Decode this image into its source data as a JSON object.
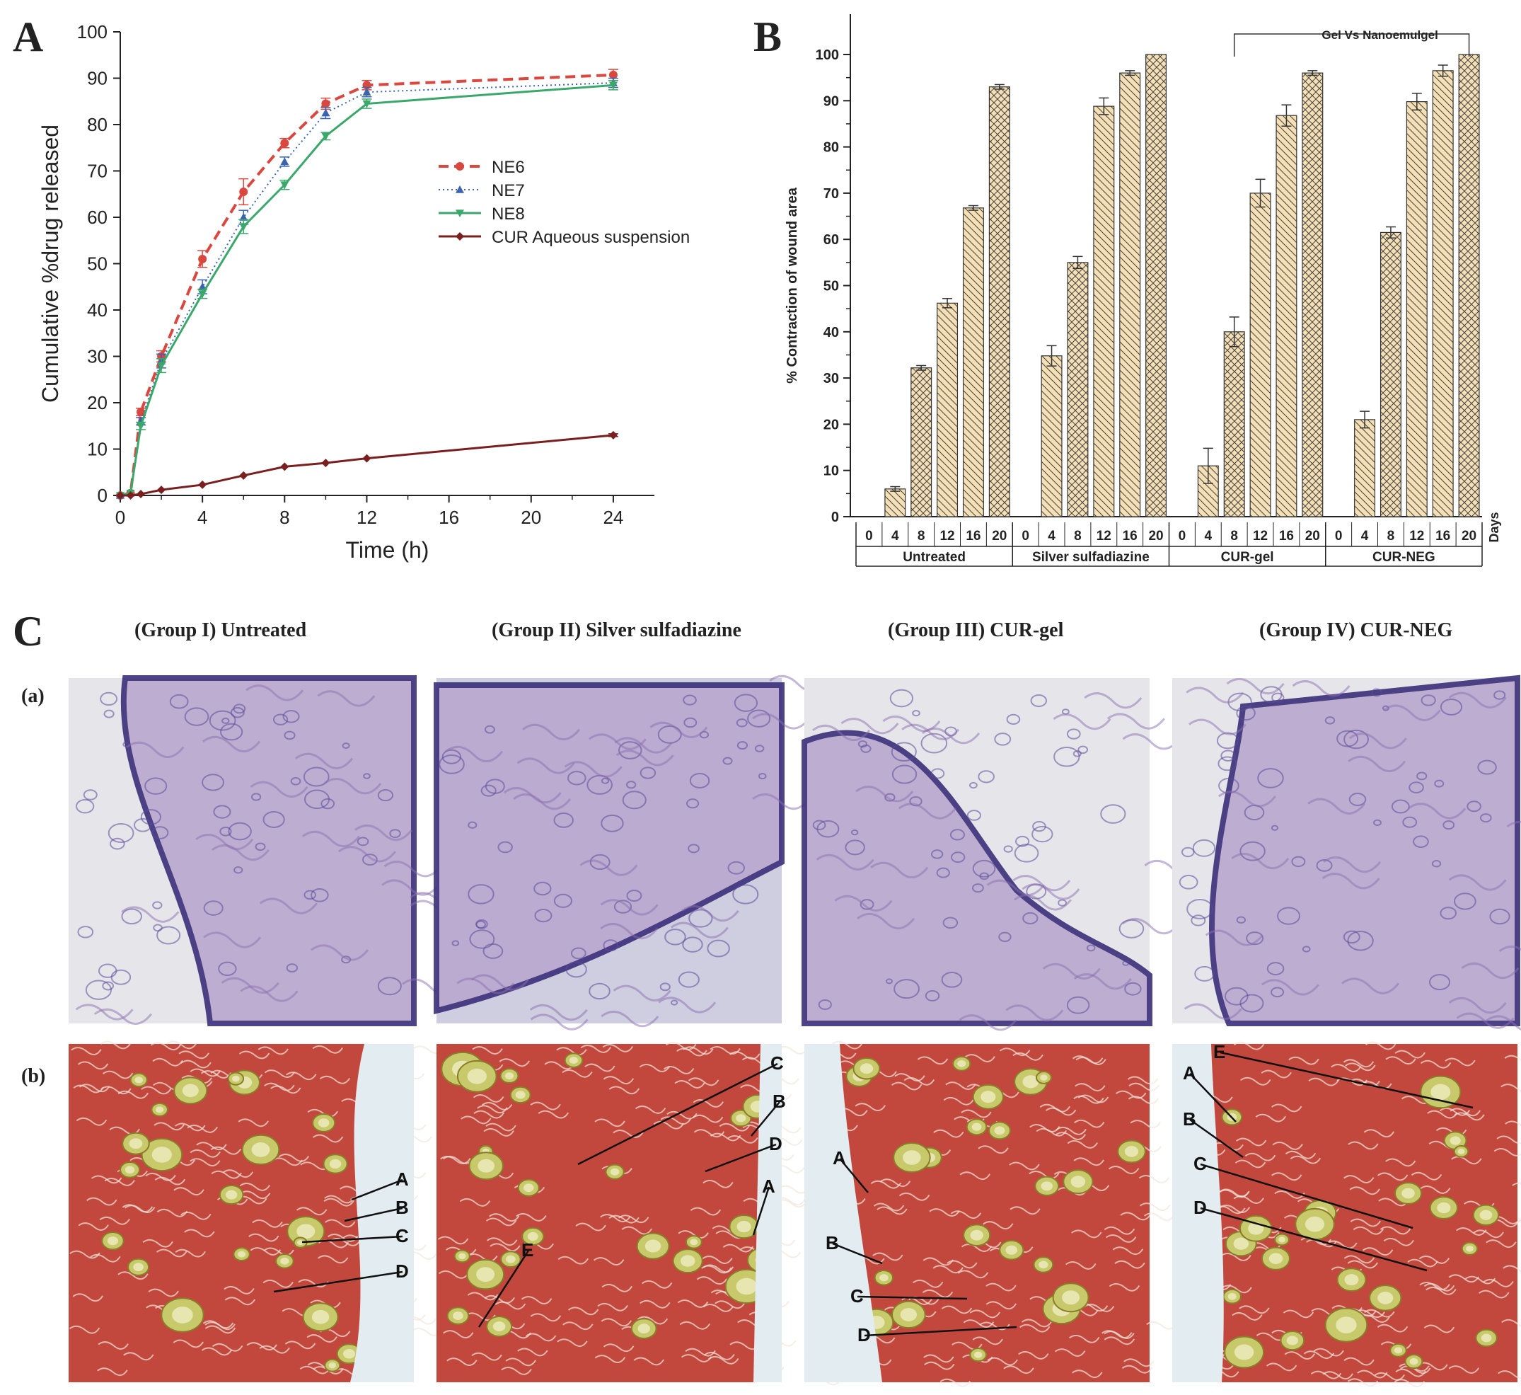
{
  "panels": {
    "a": "A",
    "b": "B",
    "c": "C"
  },
  "chart_data": [
    {
      "type": "line",
      "panel": "A",
      "xlabel": "Time (h)",
      "ylabel": "Cumulative %drug released",
      "xlim": [
        0,
        26
      ],
      "ylim": [
        0,
        100
      ],
      "xticks": [
        0,
        4,
        8,
        12,
        16,
        20,
        24
      ],
      "yticks": [
        0,
        10,
        20,
        30,
        40,
        50,
        60,
        70,
        80,
        90,
        100
      ],
      "legend_position": "center-right",
      "series": [
        {
          "name": "NE6",
          "color": "#d9473f",
          "style": "dashed",
          "marker": "circle",
          "x": [
            0,
            0.5,
            1,
            2,
            4,
            6,
            8,
            10,
            12,
            24
          ],
          "y": [
            0,
            0.5,
            18,
            30,
            51,
            65.5,
            76,
            84.5,
            88.5,
            90.7
          ],
          "err": [
            0,
            0,
            0.8,
            1.2,
            1.8,
            2.8,
            1,
            1.2,
            1,
            1.2
          ]
        },
        {
          "name": "NE7",
          "color": "#3a63b0",
          "style": "dotted",
          "marker": "triangle-up",
          "x": [
            0,
            0.5,
            1,
            2,
            4,
            6,
            8,
            10,
            12,
            24
          ],
          "y": [
            0,
            0.5,
            16,
            29,
            45,
            60,
            72,
            82.5,
            87,
            89
          ],
          "err": [
            0,
            0,
            0.8,
            1.5,
            1.5,
            1.5,
            1,
            1.2,
            1,
            1
          ]
        },
        {
          "name": "NE8",
          "color": "#3aa86a",
          "style": "solid",
          "marker": "triangle-down",
          "x": [
            0,
            0.5,
            1,
            2,
            4,
            6,
            8,
            10,
            12,
            24
          ],
          "y": [
            0,
            0.5,
            15,
            28,
            43.5,
            58,
            67,
            77.5,
            84.5,
            88.5
          ],
          "err": [
            0,
            0,
            0.8,
            1.5,
            1,
            1.5,
            1,
            0.8,
            1,
            1
          ]
        },
        {
          "name": "CUR Aqueous suspension",
          "color": "#7a1f1f",
          "style": "solid",
          "marker": "diamond",
          "x": [
            0,
            0.5,
            1,
            2,
            4,
            6,
            8,
            10,
            12,
            24
          ],
          "y": [
            0,
            0,
            0.3,
            1.2,
            2.3,
            4.3,
            6.2,
            7,
            8,
            13
          ],
          "err": [
            0,
            0,
            0,
            0,
            0,
            0,
            0,
            0,
            0,
            0.3
          ]
        }
      ]
    },
    {
      "type": "bar",
      "panel": "B",
      "ylabel": "% Contraction of wound area",
      "ylim": [
        0,
        100
      ],
      "yticks": [
        0,
        10,
        20,
        30,
        40,
        50,
        60,
        70,
        80,
        90,
        100
      ],
      "days_label": "Days",
      "bracket_label": "Gel Vs Nanoemulgel",
      "groups": [
        {
          "name": "Untreated",
          "days": [
            "0",
            "4",
            "8",
            "12",
            "16",
            "20"
          ],
          "values": [
            0,
            6,
            32.2,
            46.2,
            66.8,
            93
          ],
          "err": [
            0,
            0.5,
            0.5,
            1,
            0.5,
            0.5
          ]
        },
        {
          "name": "Silver sulfadiazine",
          "days": [
            "0",
            "4",
            "8",
            "12",
            "16",
            "20"
          ],
          "values": [
            0,
            34.8,
            55,
            88.8,
            96,
            100
          ],
          "err": [
            0,
            2.2,
            1.3,
            1.8,
            0.5,
            0
          ]
        },
        {
          "name": "CUR-gel",
          "days": [
            "0",
            "4",
            "8",
            "12",
            "16",
            "20"
          ],
          "values": [
            0,
            11,
            40,
            70,
            86.8,
            96
          ],
          "err": [
            0,
            3.8,
            3.2,
            3,
            2.3,
            0.5
          ]
        },
        {
          "name": "CUR-NEG",
          "days": [
            "0",
            "4",
            "8",
            "12",
            "16",
            "20"
          ],
          "values": [
            0,
            21,
            61.5,
            89.8,
            96.5,
            100
          ],
          "err": [
            0,
            1.8,
            1.2,
            1.8,
            1.2,
            0
          ]
        }
      ],
      "pattern_by_day": [
        "none",
        "backslash",
        "cross",
        "backslash",
        "backslash",
        "cross"
      ],
      "bar_fill": "#f5dfb4"
    }
  ],
  "histology": {
    "groups": [
      "(Group I) Untreated",
      "(Group II)  Silver sulfadiazine",
      "(Group III) CUR-gel",
      "(Group IV) CUR-NEG"
    ],
    "rows": [
      "(a)",
      "(b)"
    ],
    "annotations": [
      [
        "A",
        "B",
        "C",
        "D"
      ],
      [
        "C",
        "B",
        "D",
        "A",
        "E"
      ],
      [
        "A",
        "B",
        "C",
        "D"
      ],
      [
        "E",
        "A",
        "B",
        "C",
        "D"
      ]
    ]
  }
}
